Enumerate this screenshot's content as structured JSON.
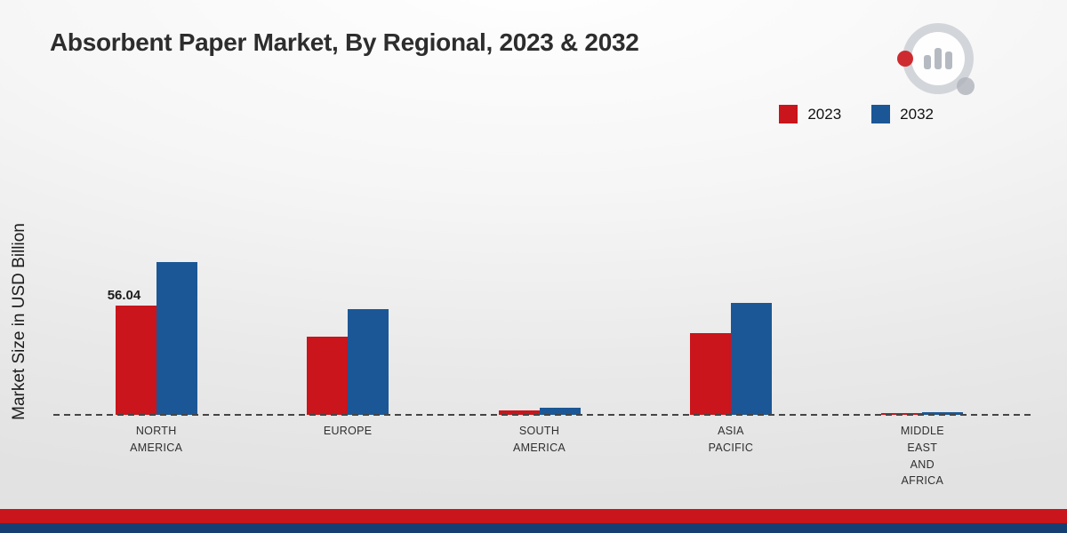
{
  "header": {
    "title": "Absorbent Paper Market, By Regional, 2023 & 2032"
  },
  "axes": {
    "y_label": "Market Size in USD Billion"
  },
  "legend": {
    "items": [
      {
        "label": "2023",
        "color": "#c9151b"
      },
      {
        "label": "2032",
        "color": "#1b5796"
      }
    ]
  },
  "chart_data": {
    "type": "bar",
    "title": "Absorbent Paper Market, By Regional, 2023 & 2032",
    "xlabel": "",
    "ylabel": "Market Size in USD Billion",
    "unit": "USD Billion",
    "categories": [
      "NORTH AMERICA",
      "EUROPE",
      "SOUTH AMERICA",
      "ASIA PACIFIC",
      "MIDDLE EAST AND AFRICA"
    ],
    "category_label_lines": [
      [
        "NORTH",
        "AMERICA"
      ],
      [
        "EUROPE"
      ],
      [
        "SOUTH",
        "AMERICA"
      ],
      [
        "ASIA",
        "PACIFIC"
      ],
      [
        "MIDDLE",
        "EAST",
        "AND",
        "AFRICA"
      ]
    ],
    "series": [
      {
        "name": "2023",
        "color": "#c9151b",
        "values": [
          56.04,
          40,
          2.3,
          42,
          0.7
        ]
      },
      {
        "name": "2032",
        "color": "#1b5796",
        "values": [
          78,
          54,
          3.5,
          57.5,
          1.5
        ]
      }
    ],
    "annotations": [
      {
        "category_index": 0,
        "series_index": 0,
        "text": "56.04"
      }
    ],
    "ylim": [
      0,
      80
    ],
    "grid": false,
    "legend_position": "top-right",
    "baseline_style": "dashed"
  },
  "footer": {
    "red_strip_color": "#c9151b",
    "navy_strip_color": "#153f72"
  }
}
